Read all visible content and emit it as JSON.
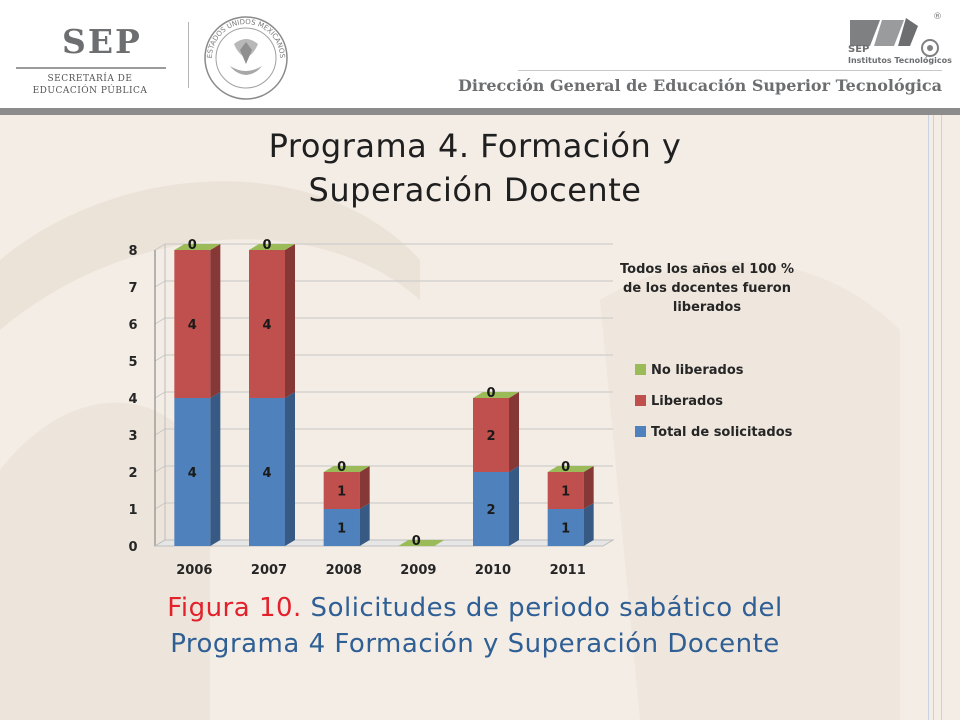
{
  "header": {
    "sep_logo": {
      "word": "SEP",
      "line1": "SECRETARÍA DE",
      "line2": "EDUCACIÓN PÚBLICA"
    },
    "seal_text": "ESTADOS UNIDOS MEXICANOS",
    "ti_logo": {
      "line1": "SEP",
      "line2": "Institutos Tecnológicos",
      "registered": "®"
    },
    "dgest": "Dirección General de Educación Superior Tecnológica"
  },
  "title": {
    "line1": "Programa 4. Formación y",
    "line2": "Superación Docente"
  },
  "caption": {
    "figure_label": "Figura 10.",
    "line1_rest": " Solicitudes de periodo sabático del",
    "line2": "Programa 4 Formación y Superación Docente"
  },
  "colors": {
    "total": "#4f81bd",
    "liberados": "#c0504d",
    "no_liberados": "#9bbb59",
    "caption_blue": "#2f5f94",
    "caption_red": "#e2212a"
  },
  "chart_data": {
    "type": "bar",
    "stacked": true,
    "categories": [
      "2006",
      "2007",
      "2008",
      "2009",
      "2010",
      "2011"
    ],
    "series": [
      {
        "name": "Total de solicitados",
        "values": [
          4,
          4,
          1,
          0,
          2,
          1
        ]
      },
      {
        "name": "Liberados",
        "values": [
          4,
          4,
          1,
          0,
          2,
          1
        ]
      },
      {
        "name": "No liberados",
        "values": [
          0,
          0,
          0,
          0,
          0,
          0
        ]
      }
    ],
    "y_ticks": [
      "0",
      "1",
      "2",
      "3",
      "4",
      "5",
      "6",
      "7",
      "8"
    ],
    "ylim": [
      0,
      8
    ],
    "grid": true,
    "legend_position": "right",
    "legend_order": [
      "No liberados",
      "Liberados",
      "Total de solicitados"
    ],
    "annotation": [
      "Todos los años el 100 %",
      "de los docentes fueron",
      "liberados"
    ],
    "title": "",
    "xlabel": "",
    "ylabel": ""
  }
}
